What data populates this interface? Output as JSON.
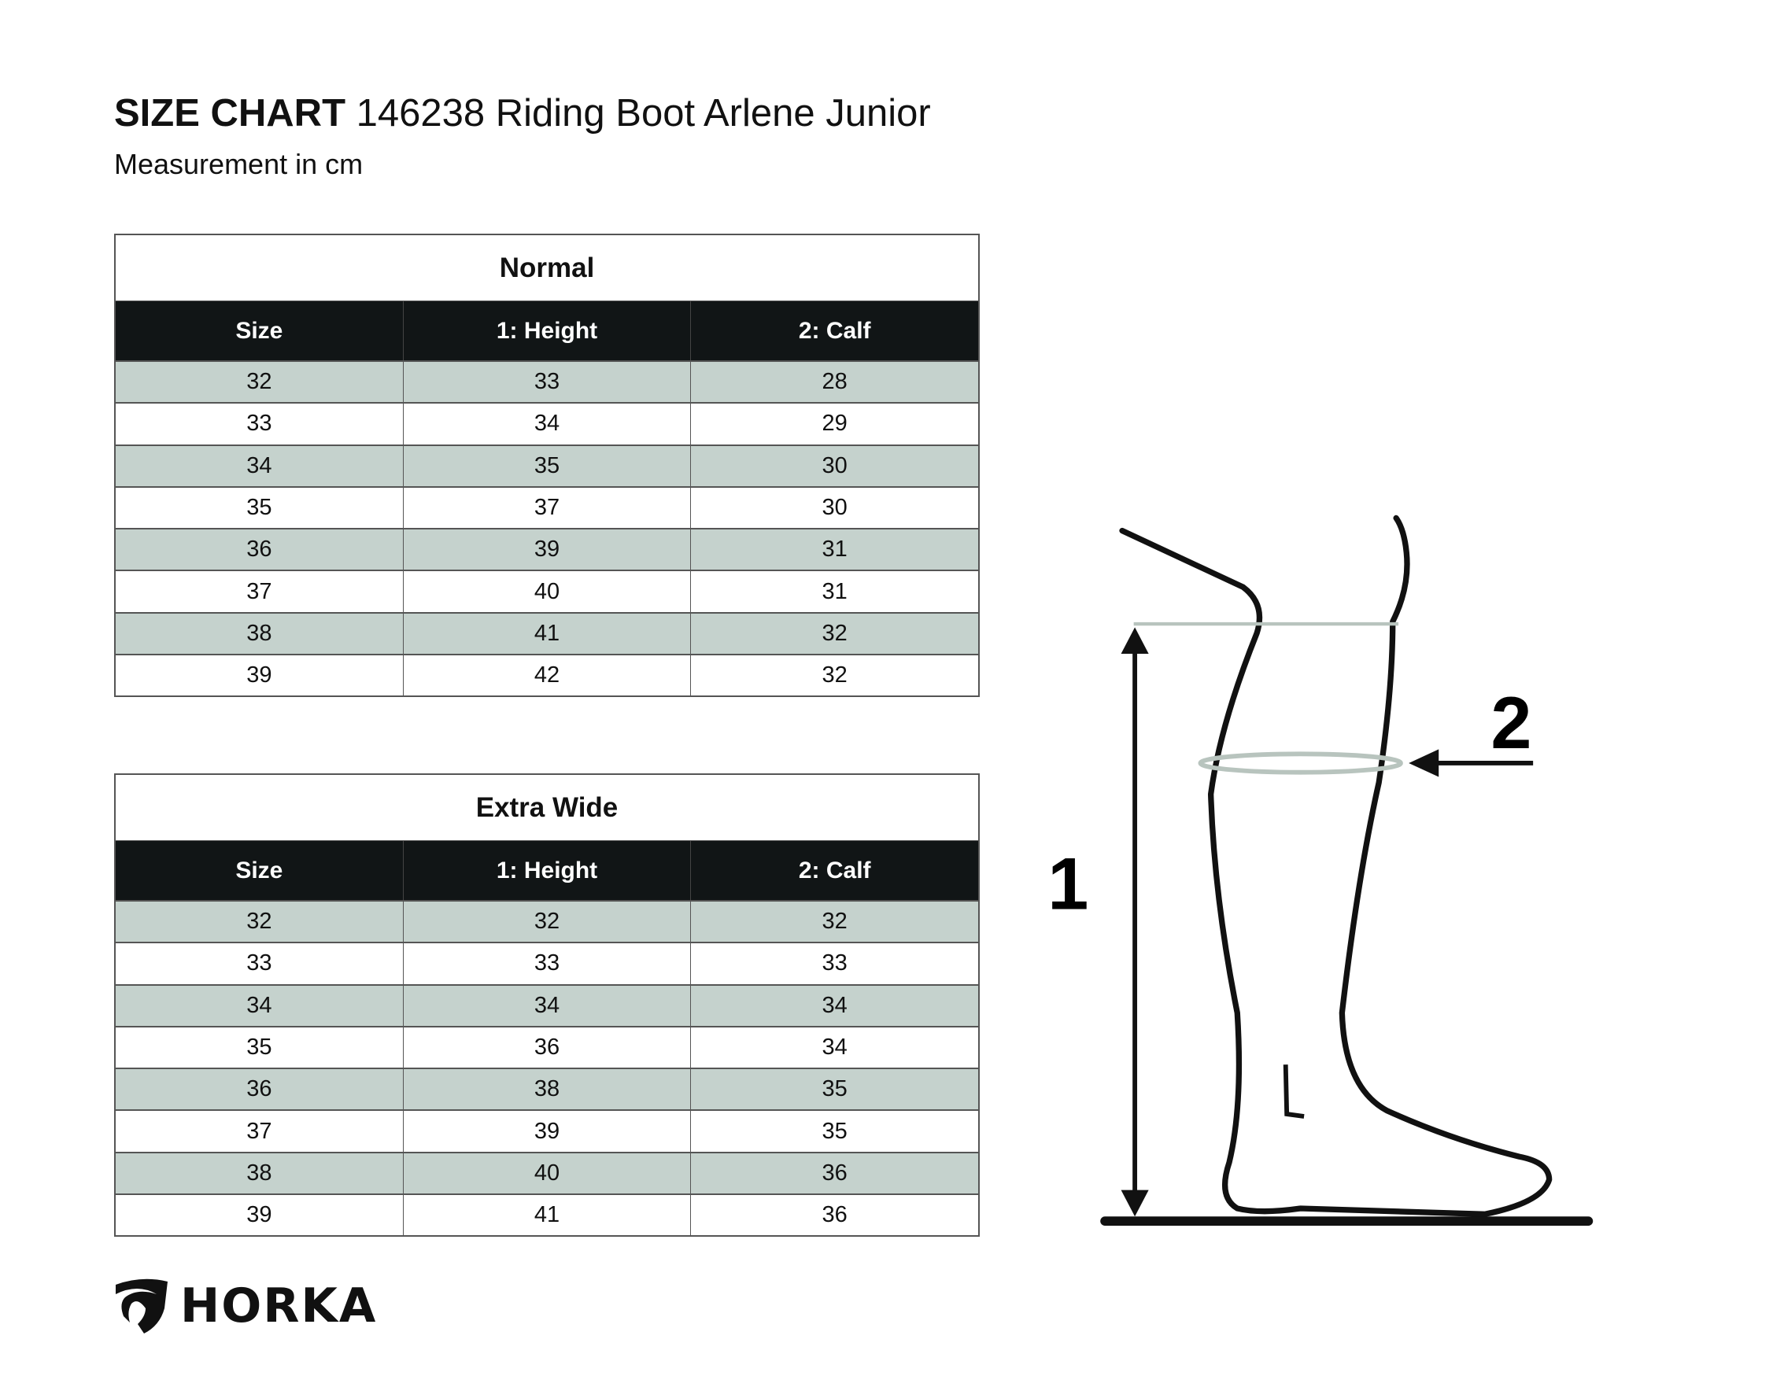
{
  "header": {
    "title_bold": "SIZE CHART",
    "title_rest": "146238 Riding Boot Arlene Junior",
    "subtitle": "Measurement in cm"
  },
  "tables": [
    {
      "title": "Normal",
      "columns": [
        "Size",
        "1: Height",
        "2: Calf"
      ],
      "rows": [
        [
          "32",
          "33",
          "28"
        ],
        [
          "33",
          "34",
          "29"
        ],
        [
          "34",
          "35",
          "30"
        ],
        [
          "35",
          "37",
          "30"
        ],
        [
          "36",
          "39",
          "31"
        ],
        [
          "37",
          "40",
          "31"
        ],
        [
          "38",
          "41",
          "32"
        ],
        [
          "39",
          "42",
          "32"
        ]
      ]
    },
    {
      "title": "Extra Wide",
      "columns": [
        "Size",
        "1: Height",
        "2: Calf"
      ],
      "rows": [
        [
          "32",
          "32",
          "32"
        ],
        [
          "33",
          "33",
          "33"
        ],
        [
          "34",
          "34",
          "34"
        ],
        [
          "35",
          "36",
          "34"
        ],
        [
          "36",
          "38",
          "35"
        ],
        [
          "37",
          "39",
          "35"
        ],
        [
          "38",
          "40",
          "36"
        ],
        [
          "39",
          "41",
          "36"
        ]
      ]
    }
  ],
  "diagram": {
    "label_height": "1",
    "label_calf": "2",
    "measure_line_color": "#b8c4be"
  },
  "logo": {
    "text": "HORKA",
    "icon": "horse-head-shield-icon"
  },
  "colors": {
    "header_bg": "#111516",
    "stripe": "#c5d2cd"
  }
}
